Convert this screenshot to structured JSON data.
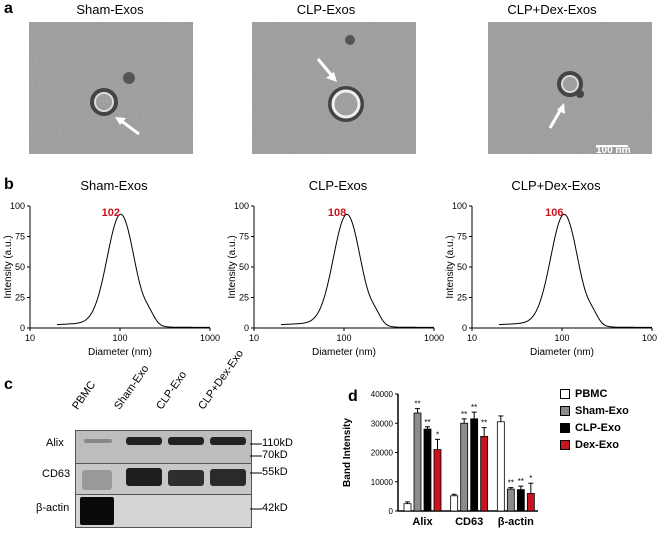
{
  "panels": {
    "a": "a",
    "b": "b",
    "c": "c",
    "d": "d"
  },
  "em": {
    "titles": [
      "Sham-Exos",
      "CLP-Exos",
      "CLP+Dex-Exos"
    ],
    "scale_bar": "100 nm"
  },
  "nta": {
    "plots": [
      {
        "title": "Sham-Exos",
        "peak": "102",
        "peak_x": 102
      },
      {
        "title": "CLP-Exos",
        "peak": "108",
        "peak_x": 108
      },
      {
        "title": "CLP+Dex-Exos",
        "peak": "106",
        "peak_x": 106
      }
    ],
    "ylabel": "Intensity (a.u.)",
    "xlabel": "Diameter (nm)",
    "yticks": [
      "0",
      "25",
      "50",
      "75",
      "100"
    ],
    "xticks": [
      "10",
      "100",
      "1000"
    ]
  },
  "wb": {
    "lanes": [
      "PBMC",
      "Sham-Exo",
      "CLP-Exo",
      "CLP+Dex-Exo"
    ],
    "rows": [
      "Alix",
      "CD63",
      "β-actin"
    ],
    "markers": [
      "110kD",
      "70kD",
      "55kD",
      "42kD"
    ]
  },
  "chart_data": {
    "type": "bar",
    "categories": [
      "Alix",
      "CD63",
      "β-actin"
    ],
    "ylabel": "Band Intensity",
    "ylim": [
      0,
      40000
    ],
    "yticks": [
      "0",
      "10000",
      "20000",
      "30000",
      "40000"
    ],
    "series": [
      {
        "name": "PBMC",
        "color": "#ffffff",
        "values": [
          2500,
          5200,
          30500
        ],
        "errors": [
          600,
          500,
          2000
        ],
        "sig": [
          "",
          "",
          ""
        ]
      },
      {
        "name": "Sham-Exo",
        "color": "#8c8c8c",
        "values": [
          33500,
          30000,
          7500
        ],
        "errors": [
          1500,
          1500,
          500
        ],
        "sig": [
          "**",
          "**",
          "**"
        ]
      },
      {
        "name": "CLP-Exo",
        "color": "#000000",
        "values": [
          28000,
          31500,
          7300
        ],
        "errors": [
          800,
          2300,
          1200
        ],
        "sig": [
          "**",
          "**",
          "**"
        ]
      },
      {
        "name": "Dex-Exo",
        "color": "#c8141e",
        "values": [
          21000,
          25500,
          6000
        ],
        "errors": [
          3500,
          3000,
          3500
        ],
        "sig": [
          "*",
          "**",
          "*"
        ]
      }
    ]
  }
}
